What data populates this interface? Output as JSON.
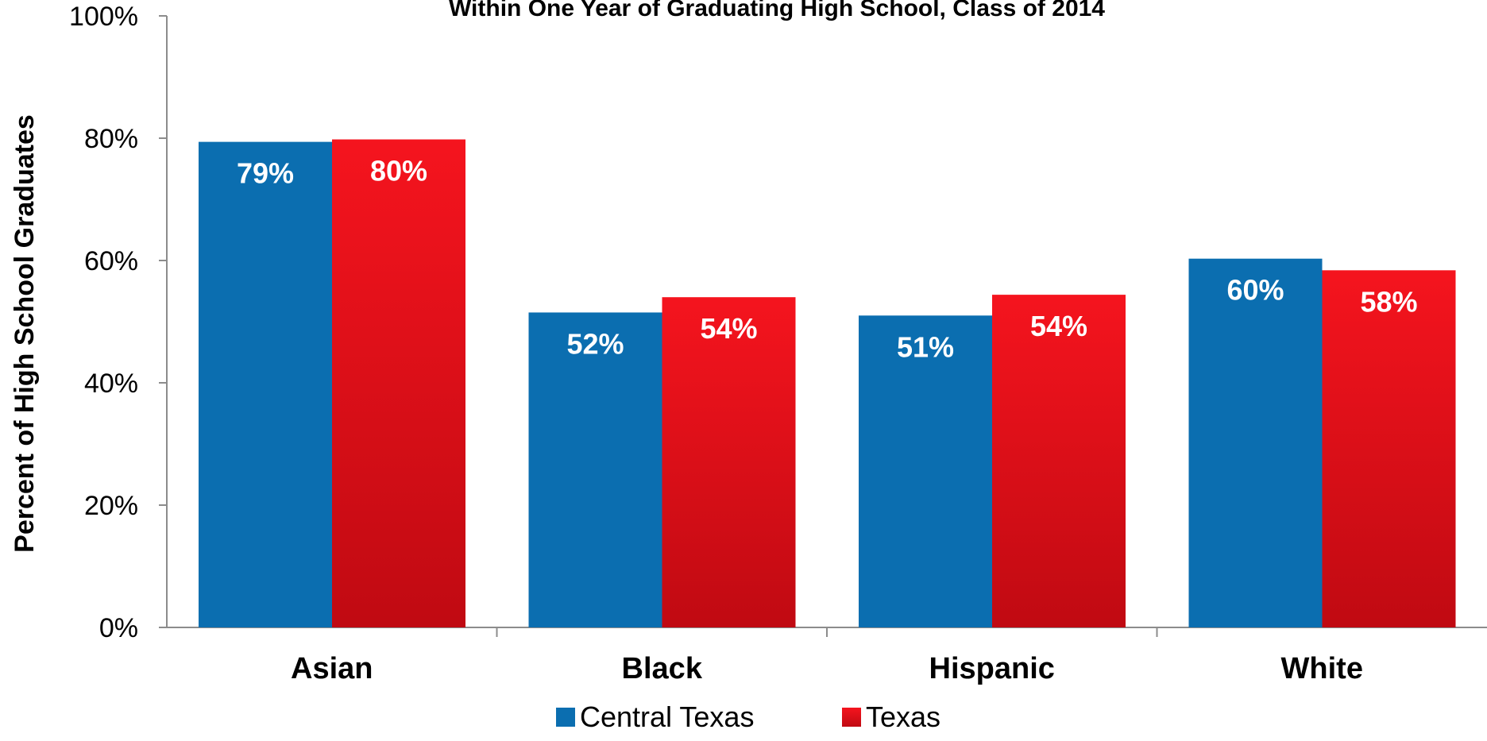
{
  "chart_data": {
    "type": "bar",
    "title": "Within One Year of Graduating High School, Class of 2014",
    "ylabel": "Percent of High School Graduates",
    "xlabel": "",
    "ylim": [
      0,
      100
    ],
    "yticks": [
      "0%",
      "20%",
      "40%",
      "60%",
      "80%",
      "100%"
    ],
    "categories": [
      "Asian",
      "Black",
      "Hispanic",
      "White"
    ],
    "series": [
      {
        "name": "Central Texas",
        "values": [
          79.4,
          51.5,
          51.0,
          60.3
        ],
        "labels": [
          "79%",
          "52%",
          "51%",
          "60%"
        ],
        "color": "#0b6eb0"
      },
      {
        "name": "Texas",
        "values": [
          79.8,
          54.0,
          54.4,
          58.4
        ],
        "labels": [
          "80%",
          "54%",
          "54%",
          "58%"
        ],
        "color": "#ec1c24"
      }
    ],
    "grid": false,
    "legend": "bottom"
  }
}
